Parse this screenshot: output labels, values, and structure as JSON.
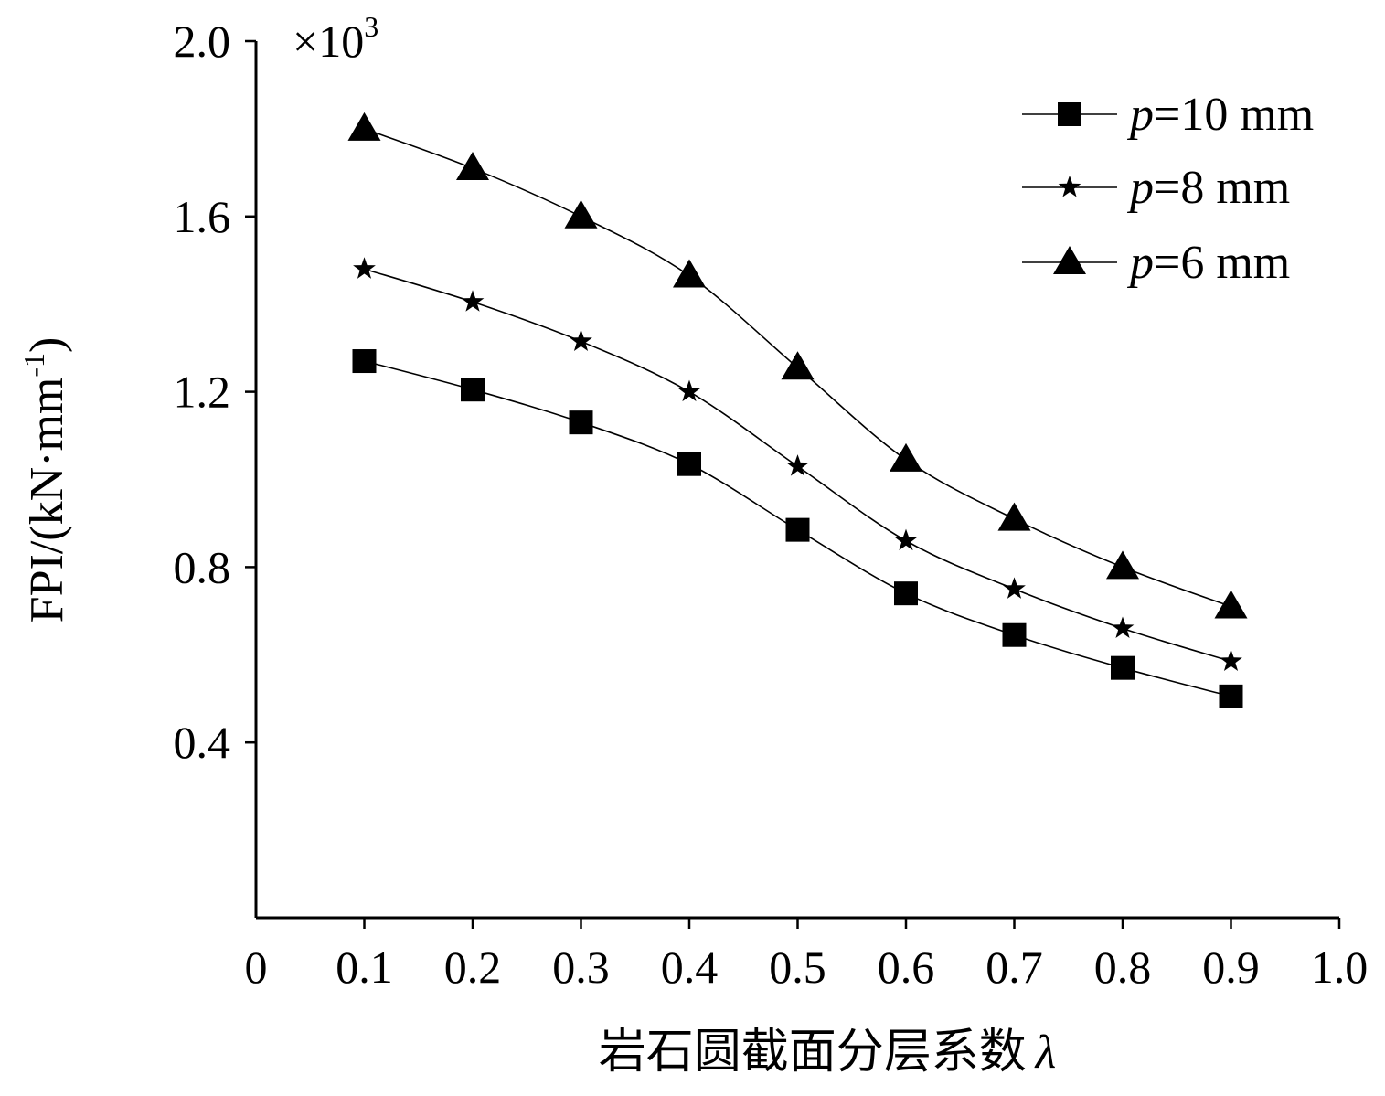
{
  "chart_data": {
    "type": "line",
    "title": "",
    "xlabel": "岩石圆截面分层系数",
    "xlabel_symbol": "λ",
    "ylabel": "FPI/(kN·mm",
    "ylabel_sup": "-1",
    "ylabel_close": ")",
    "y_multiplier_prefix": "×10",
    "y_multiplier_exp": "3",
    "xlim": [
      0,
      1.0
    ],
    "ylim": [
      0,
      2.0
    ],
    "x_ticks": [
      0,
      0.1,
      0.2,
      0.3,
      0.4,
      0.5,
      0.6,
      0.7,
      0.8,
      0.9,
      1.0
    ],
    "x_tick_labels": [
      "0",
      "0.1",
      "0.2",
      "0.3",
      "0.4",
      "0.5",
      "0.6",
      "0.7",
      "0.8",
      "0.9",
      "1.0"
    ],
    "y_ticks": [
      0.4,
      0.8,
      1.2,
      1.6,
      2.0
    ],
    "y_tick_labels": [
      "0.4",
      "0.8",
      "1.2",
      "1.6",
      "2.0"
    ],
    "grid": false,
    "legend_position": "top-right",
    "x": [
      0.1,
      0.2,
      0.3,
      0.4,
      0.5,
      0.6,
      0.7,
      0.8,
      0.9
    ],
    "series": [
      {
        "name_var": "p",
        "name_rest": "=10 mm",
        "marker": "square",
        "values": [
          1.27,
          1.205,
          1.13,
          1.035,
          0.885,
          0.74,
          0.645,
          0.57,
          0.505
        ]
      },
      {
        "name_var": "p",
        "name_rest": "=8 mm",
        "marker": "star",
        "values": [
          1.48,
          1.405,
          1.315,
          1.2,
          1.03,
          0.86,
          0.75,
          0.66,
          0.585
        ]
      },
      {
        "name_var": "p",
        "name_rest": "=6 mm",
        "marker": "triangle",
        "values": [
          1.8,
          1.71,
          1.6,
          1.465,
          1.255,
          1.045,
          0.91,
          0.8,
          0.71
        ]
      }
    ]
  }
}
